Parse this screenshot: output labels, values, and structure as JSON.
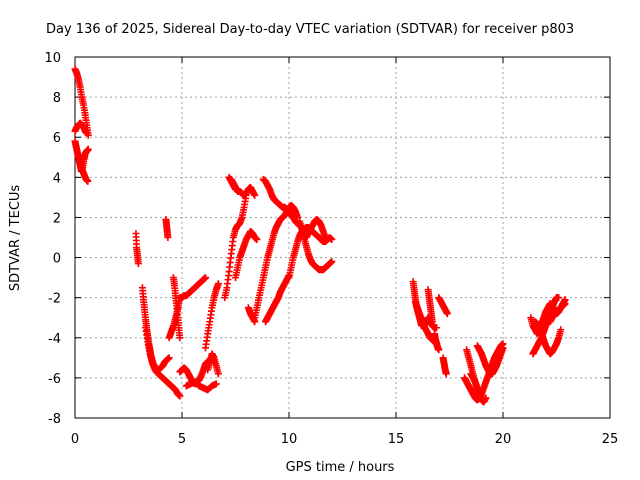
{
  "chart_data": {
    "type": "scatter",
    "title": "Day 136 of 2025, Sidereal Day-to-day VTEC variation (SDTVAR) for receiver p803",
    "xlabel": "GPS time / hours",
    "ylabel": "SDTVAR / TECUs",
    "xlim": [
      0,
      25
    ],
    "ylim": [
      -8,
      10
    ],
    "xticks": [
      0,
      5,
      10,
      15,
      20,
      25
    ],
    "yticks": [
      -8,
      -6,
      -4,
      -2,
      0,
      2,
      4,
      6,
      8,
      10
    ],
    "grid": true,
    "marker": "+",
    "color": "#ff0000",
    "segments": [
      {
        "x": [
          0.0,
          0.08,
          0.16,
          0.24,
          0.32,
          0.4,
          0.48,
          0.55,
          0.62
        ],
        "y": [
          9.4,
          9.2,
          8.9,
          8.5,
          8.0,
          7.6,
          7.1,
          6.6,
          6.1
        ]
      },
      {
        "x": [
          0.0,
          0.08,
          0.16,
          0.24,
          0.32,
          0.4,
          0.48,
          0.55
        ],
        "y": [
          6.3,
          6.5,
          6.6,
          6.7,
          6.6,
          6.5,
          6.3,
          6.2
        ]
      },
      {
        "x": [
          0.0,
          0.06,
          0.12,
          0.18,
          0.24,
          0.3,
          0.36,
          0.42,
          0.48,
          0.55,
          0.62
        ],
        "y": [
          5.8,
          5.5,
          5.2,
          4.9,
          4.6,
          4.3,
          4.5,
          4.9,
          5.2,
          5.3,
          5.4
        ]
      },
      {
        "x": [
          0.2,
          0.28,
          0.36,
          0.44,
          0.52,
          0.6
        ],
        "y": [
          5.0,
          4.6,
          4.3,
          4.1,
          3.9,
          3.8
        ]
      },
      {
        "x": [
          2.85,
          2.88,
          2.92,
          2.96
        ],
        "y": [
          1.2,
          0.5,
          0.1,
          -0.3
        ]
      },
      {
        "x": [
          3.15,
          3.2,
          3.25,
          3.3,
          3.35,
          3.4,
          3.45,
          3.5,
          3.55,
          3.6,
          3.65,
          3.7,
          3.75,
          3.8,
          3.9,
          4.0,
          4.1,
          4.2,
          4.3,
          4.4
        ],
        "y": [
          -1.5,
          -2.1,
          -2.6,
          -3.1,
          -3.5,
          -3.9,
          -4.3,
          -4.6,
          -4.9,
          -5.1,
          -5.3,
          -5.4,
          -5.5,
          -5.6,
          -5.6,
          -5.5,
          -5.4,
          -5.2,
          -5.1,
          -5.0
        ]
      },
      {
        "x": [
          3.3,
          3.4,
          3.5,
          3.6,
          3.7,
          3.8,
          3.9,
          4.0,
          4.1,
          4.2,
          4.3,
          4.4,
          4.5,
          4.6,
          4.7,
          4.8,
          4.9
        ],
        "y": [
          -3.5,
          -4.2,
          -4.8,
          -5.2,
          -5.5,
          -5.7,
          -5.8,
          -5.9,
          -6.0,
          -6.1,
          -6.2,
          -6.3,
          -6.4,
          -6.5,
          -6.6,
          -6.8,
          -6.9
        ]
      },
      {
        "x": [
          4.25,
          4.28,
          4.31,
          4.34
        ],
        "y": [
          1.9,
          1.6,
          1.3,
          1.0
        ]
      },
      {
        "x": [
          4.4,
          4.5,
          4.6,
          4.7,
          4.8,
          4.85
        ],
        "y": [
          -4.0,
          -3.7,
          -3.4,
          -3.0,
          -2.6,
          -2.2
        ]
      },
      {
        "x": [
          4.6,
          4.65,
          4.7,
          4.75,
          4.8,
          4.85,
          4.9
        ],
        "y": [
          -1.0,
          -1.4,
          -1.9,
          -2.4,
          -3.0,
          -3.5,
          -4.0
        ]
      },
      {
        "x": [
          4.9,
          5.0,
          5.1,
          5.2,
          5.3,
          5.4,
          5.5,
          5.6,
          5.7,
          5.8,
          5.9,
          6.0,
          6.1
        ],
        "y": [
          -2.0,
          -2.0,
          -1.9,
          -1.9,
          -1.8,
          -1.7,
          -1.6,
          -1.5,
          -1.4,
          -1.3,
          -1.2,
          -1.1,
          -1.0
        ]
      },
      {
        "x": [
          4.9,
          5.0,
          5.1,
          5.2,
          5.3,
          5.4,
          5.5,
          5.6,
          5.7,
          5.8,
          5.9,
          6.0,
          6.1,
          6.2,
          6.3,
          6.4,
          6.5
        ],
        "y": [
          -5.7,
          -5.6,
          -5.5,
          -5.6,
          -5.8,
          -6.0,
          -6.2,
          -6.3,
          -6.2,
          -6.1,
          -5.9,
          -5.6,
          -5.3,
          -5.2,
          -5.1,
          -5.1,
          -5.2
        ]
      },
      {
        "x": [
          5.2,
          5.4,
          5.6,
          5.8,
          6.0,
          6.2,
          6.4,
          6.6
        ],
        "y": [
          -6.4,
          -6.3,
          -6.2,
          -6.4,
          -6.5,
          -6.6,
          -6.4,
          -6.3
        ]
      },
      {
        "x": [
          6.1,
          6.2,
          6.3,
          6.4,
          6.5,
          6.6,
          6.7
        ],
        "y": [
          -4.5,
          -3.8,
          -3.2,
          -2.5,
          -2.0,
          -1.6,
          -1.3
        ]
      },
      {
        "x": [
          6.2,
          6.3,
          6.4,
          6.5,
          6.6,
          6.7
        ],
        "y": [
          -5.6,
          -5.2,
          -4.8,
          -5.0,
          -5.4,
          -5.8
        ]
      },
      {
        "x": [
          7.0,
          7.1,
          7.2,
          7.3,
          7.4,
          7.5,
          7.6,
          7.7,
          7.8,
          7.9,
          8.0
        ],
        "y": [
          -2.0,
          -1.5,
          -0.7,
          0.2,
          1.0,
          1.4,
          1.6,
          1.7,
          2.0,
          2.5,
          3.1
        ]
      },
      {
        "x": [
          7.2,
          7.3,
          7.4,
          7.5
        ],
        "y": [
          4.0,
          3.8,
          3.6,
          3.4
        ]
      },
      {
        "x": [
          7.3,
          7.4,
          7.5,
          7.6,
          7.7,
          7.8,
          7.9,
          8.0,
          8.1,
          8.2,
          8.3,
          8.4
        ],
        "y": [
          3.9,
          3.7,
          3.5,
          3.3,
          3.3,
          3.2,
          3.1,
          3.2,
          3.4,
          3.5,
          3.3,
          3.1
        ]
      },
      {
        "x": [
          7.5,
          7.6,
          7.7,
          7.8,
          7.9,
          8.0,
          8.1,
          8.2,
          8.3,
          8.4,
          8.5
        ],
        "y": [
          -1.0,
          -0.5,
          0.0,
          0.3,
          0.6,
          0.9,
          1.1,
          1.3,
          1.2,
          1.0,
          0.9
        ]
      },
      {
        "x": [
          8.1,
          8.2,
          8.3,
          8.4
        ],
        "y": [
          -2.5,
          -2.8,
          -3.0,
          -3.2
        ]
      },
      {
        "x": [
          8.4,
          8.5,
          8.6,
          8.7,
          8.8,
          8.9,
          9.0,
          9.1,
          9.2,
          9.3,
          9.4,
          9.5,
          9.6,
          9.7,
          9.8,
          9.9,
          10.0,
          10.1,
          10.2,
          10.3,
          10.4
        ],
        "y": [
          -3.0,
          -2.5,
          -2.0,
          -1.5,
          -1.0,
          -0.5,
          0.0,
          0.4,
          0.8,
          1.2,
          1.5,
          1.7,
          1.9,
          2.0,
          2.1,
          2.3,
          2.5,
          2.6,
          2.5,
          2.3,
          2.0
        ]
      },
      {
        "x": [
          8.8,
          8.9,
          9.0,
          9.1,
          9.2,
          9.3,
          9.4,
          9.5,
          9.6,
          9.7,
          9.8,
          9.9,
          10.0,
          10.1,
          10.2,
          10.3,
          10.4,
          10.5,
          10.6
        ],
        "y": [
          3.9,
          3.8,
          3.6,
          3.4,
          3.1,
          2.9,
          2.8,
          2.7,
          2.6,
          2.5,
          2.5,
          2.4,
          2.3,
          2.1,
          2.0,
          1.8,
          1.7,
          1.6,
          1.5
        ]
      },
      {
        "x": [
          8.9,
          9.0,
          9.1,
          9.2,
          9.3,
          9.4,
          9.5,
          9.6,
          9.7,
          9.8,
          9.9,
          10.0
        ],
        "y": [
          -3.2,
          -3.0,
          -2.8,
          -2.6,
          -2.4,
          -2.2,
          -2.0,
          -1.7,
          -1.5,
          -1.3,
          -1.1,
          -0.9
        ]
      },
      {
        "x": [
          10.0,
          10.1,
          10.2,
          10.3,
          10.4,
          10.5,
          10.6,
          10.7,
          10.8,
          10.9,
          11.0,
          11.1,
          11.2,
          11.3,
          11.4,
          11.5,
          11.6,
          11.7,
          11.8,
          11.9,
          12.0
        ],
        "y": [
          -1.0,
          -0.5,
          0.0,
          0.4,
          0.8,
          1.1,
          1.3,
          1.4,
          1.5,
          1.5,
          1.4,
          1.3,
          1.2,
          1.1,
          1.0,
          0.9,
          0.8,
          0.8,
          0.9,
          1.0,
          0.9
        ]
      },
      {
        "x": [
          10.5,
          10.6,
          10.7,
          10.8,
          10.9,
          11.0,
          11.1,
          11.2,
          11.3,
          11.4,
          11.5,
          11.6,
          11.7,
          11.8,
          11.9,
          12.0
        ],
        "y": [
          1.8,
          1.4,
          1.0,
          0.6,
          0.2,
          -0.1,
          -0.3,
          -0.4,
          -0.5,
          -0.6,
          -0.6,
          -0.6,
          -0.5,
          -0.4,
          -0.3,
          -0.2
        ]
      },
      {
        "x": [
          10.8,
          10.9,
          11.0,
          11.1,
          11.2,
          11.3,
          11.4,
          11.5,
          11.6,
          11.7
        ],
        "y": [
          1.0,
          1.2,
          1.4,
          1.6,
          1.8,
          1.9,
          1.8,
          1.6,
          1.3,
          1.0
        ]
      },
      {
        "x": [
          15.8,
          15.85,
          15.9,
          15.95,
          16.0,
          16.05,
          16.1,
          16.15,
          16.2
        ],
        "y": [
          -1.2,
          -1.6,
          -2.0,
          -2.4,
          -2.6,
          -2.8,
          -3.0,
          -3.2,
          -3.4
        ]
      },
      {
        "x": [
          15.9,
          16.0,
          16.1,
          16.2,
          16.3,
          16.4,
          16.5,
          16.6,
          16.7,
          16.8,
          16.9
        ],
        "y": [
          -2.2,
          -2.5,
          -2.8,
          -3.1,
          -3.4,
          -3.6,
          -3.8,
          -4.0,
          -4.1,
          -4.2,
          -4.3
        ]
      },
      {
        "x": [
          16.3,
          16.4,
          16.5,
          16.6,
          16.7,
          16.8,
          16.9
        ],
        "y": [
          -3.5,
          -3.2,
          -3.0,
          -3.2,
          -3.4,
          -3.5,
          -3.5
        ]
      },
      {
        "x": [
          16.5,
          16.55,
          16.6,
          16.65,
          16.7
        ],
        "y": [
          -1.6,
          -2.0,
          -2.4,
          -2.8,
          -3.2
        ]
      },
      {
        "x": [
          16.8,
          16.85,
          16.9,
          16.95,
          17.0
        ],
        "y": [
          -3.8,
          -4.1,
          -4.3,
          -4.5,
          -4.6
        ]
      },
      {
        "x": [
          17.0,
          17.1,
          17.2,
          17.3,
          17.4
        ],
        "y": [
          -2.0,
          -2.2,
          -2.4,
          -2.6,
          -2.8
        ]
      },
      {
        "x": [
          17.2,
          17.25,
          17.3,
          17.35
        ],
        "y": [
          -5.0,
          -5.3,
          -5.6,
          -5.8
        ]
      },
      {
        "x": [
          18.2,
          18.3,
          18.4,
          18.5,
          18.6,
          18.7,
          18.8,
          18.9,
          19.0,
          19.1,
          19.2,
          19.3,
          19.4,
          19.5,
          19.6,
          19.7,
          19.8,
          19.9,
          20.0
        ],
        "y": [
          -6.0,
          -6.2,
          -6.4,
          -6.6,
          -6.8,
          -7.0,
          -7.1,
          -7.0,
          -6.8,
          -6.5,
          -6.2,
          -5.9,
          -5.6,
          -5.3,
          -5.0,
          -4.8,
          -4.6,
          -4.4,
          -4.3
        ]
      },
      {
        "x": [
          18.3,
          18.4,
          18.5,
          18.6,
          18.7,
          18.8,
          18.9
        ],
        "y": [
          -4.6,
          -5.0,
          -5.4,
          -5.8,
          -6.2,
          -6.6,
          -7.0
        ]
      },
      {
        "x": [
          18.5,
          18.6,
          18.7,
          18.8,
          18.9,
          19.0,
          19.1,
          19.2
        ],
        "y": [
          -5.8,
          -6.0,
          -6.2,
          -6.5,
          -6.8,
          -7.1,
          -7.2,
          -7.0
        ]
      },
      {
        "x": [
          18.8,
          18.9,
          19.0,
          19.1,
          19.2,
          19.3,
          19.4,
          19.5,
          19.6,
          19.7,
          19.8,
          19.9,
          20.0
        ],
        "y": [
          -4.4,
          -4.6,
          -4.8,
          -5.1,
          -5.4,
          -5.6,
          -5.8,
          -5.8,
          -5.6,
          -5.4,
          -5.1,
          -4.8,
          -4.5
        ]
      },
      {
        "x": [
          21.3,
          21.4,
          21.5,
          21.6,
          21.7,
          21.8,
          21.9,
          22.0,
          22.1,
          22.2,
          22.3,
          22.4,
          22.5,
          22.6,
          22.7,
          22.8,
          22.9
        ],
        "y": [
          -3.0,
          -3.4,
          -3.6,
          -3.8,
          -3.6,
          -3.3,
          -3.0,
          -2.7,
          -2.5,
          -2.3,
          -2.4,
          -2.6,
          -2.8,
          -2.7,
          -2.5,
          -2.3,
          -2.1
        ]
      },
      {
        "x": [
          21.4,
          21.5,
          21.6,
          21.7,
          21.8,
          21.9,
          22.0,
          22.1,
          22.2,
          22.3,
          22.4,
          22.5,
          22.6
        ],
        "y": [
          -4.8,
          -4.6,
          -4.4,
          -4.2,
          -4.0,
          -3.7,
          -3.4,
          -3.1,
          -2.8,
          -2.5,
          -2.2,
          -2.0,
          -2.0
        ]
      },
      {
        "x": [
          21.5,
          21.6,
          21.7,
          21.8,
          21.9,
          22.0,
          22.1,
          22.2,
          22.3,
          22.4,
          22.5,
          22.6,
          22.7
        ],
        "y": [
          -3.2,
          -3.3,
          -3.5,
          -3.8,
          -4.1,
          -4.4,
          -4.6,
          -4.8,
          -4.7,
          -4.5,
          -4.3,
          -4.0,
          -3.6
        ]
      },
      {
        "x": [
          22.2,
          22.3,
          22.4,
          22.5,
          22.6,
          22.7,
          22.8,
          22.9
        ],
        "y": [
          -3.2,
          -3.0,
          -2.8,
          -2.7,
          -2.6,
          -2.5,
          -2.4,
          -2.3
        ]
      }
    ]
  }
}
